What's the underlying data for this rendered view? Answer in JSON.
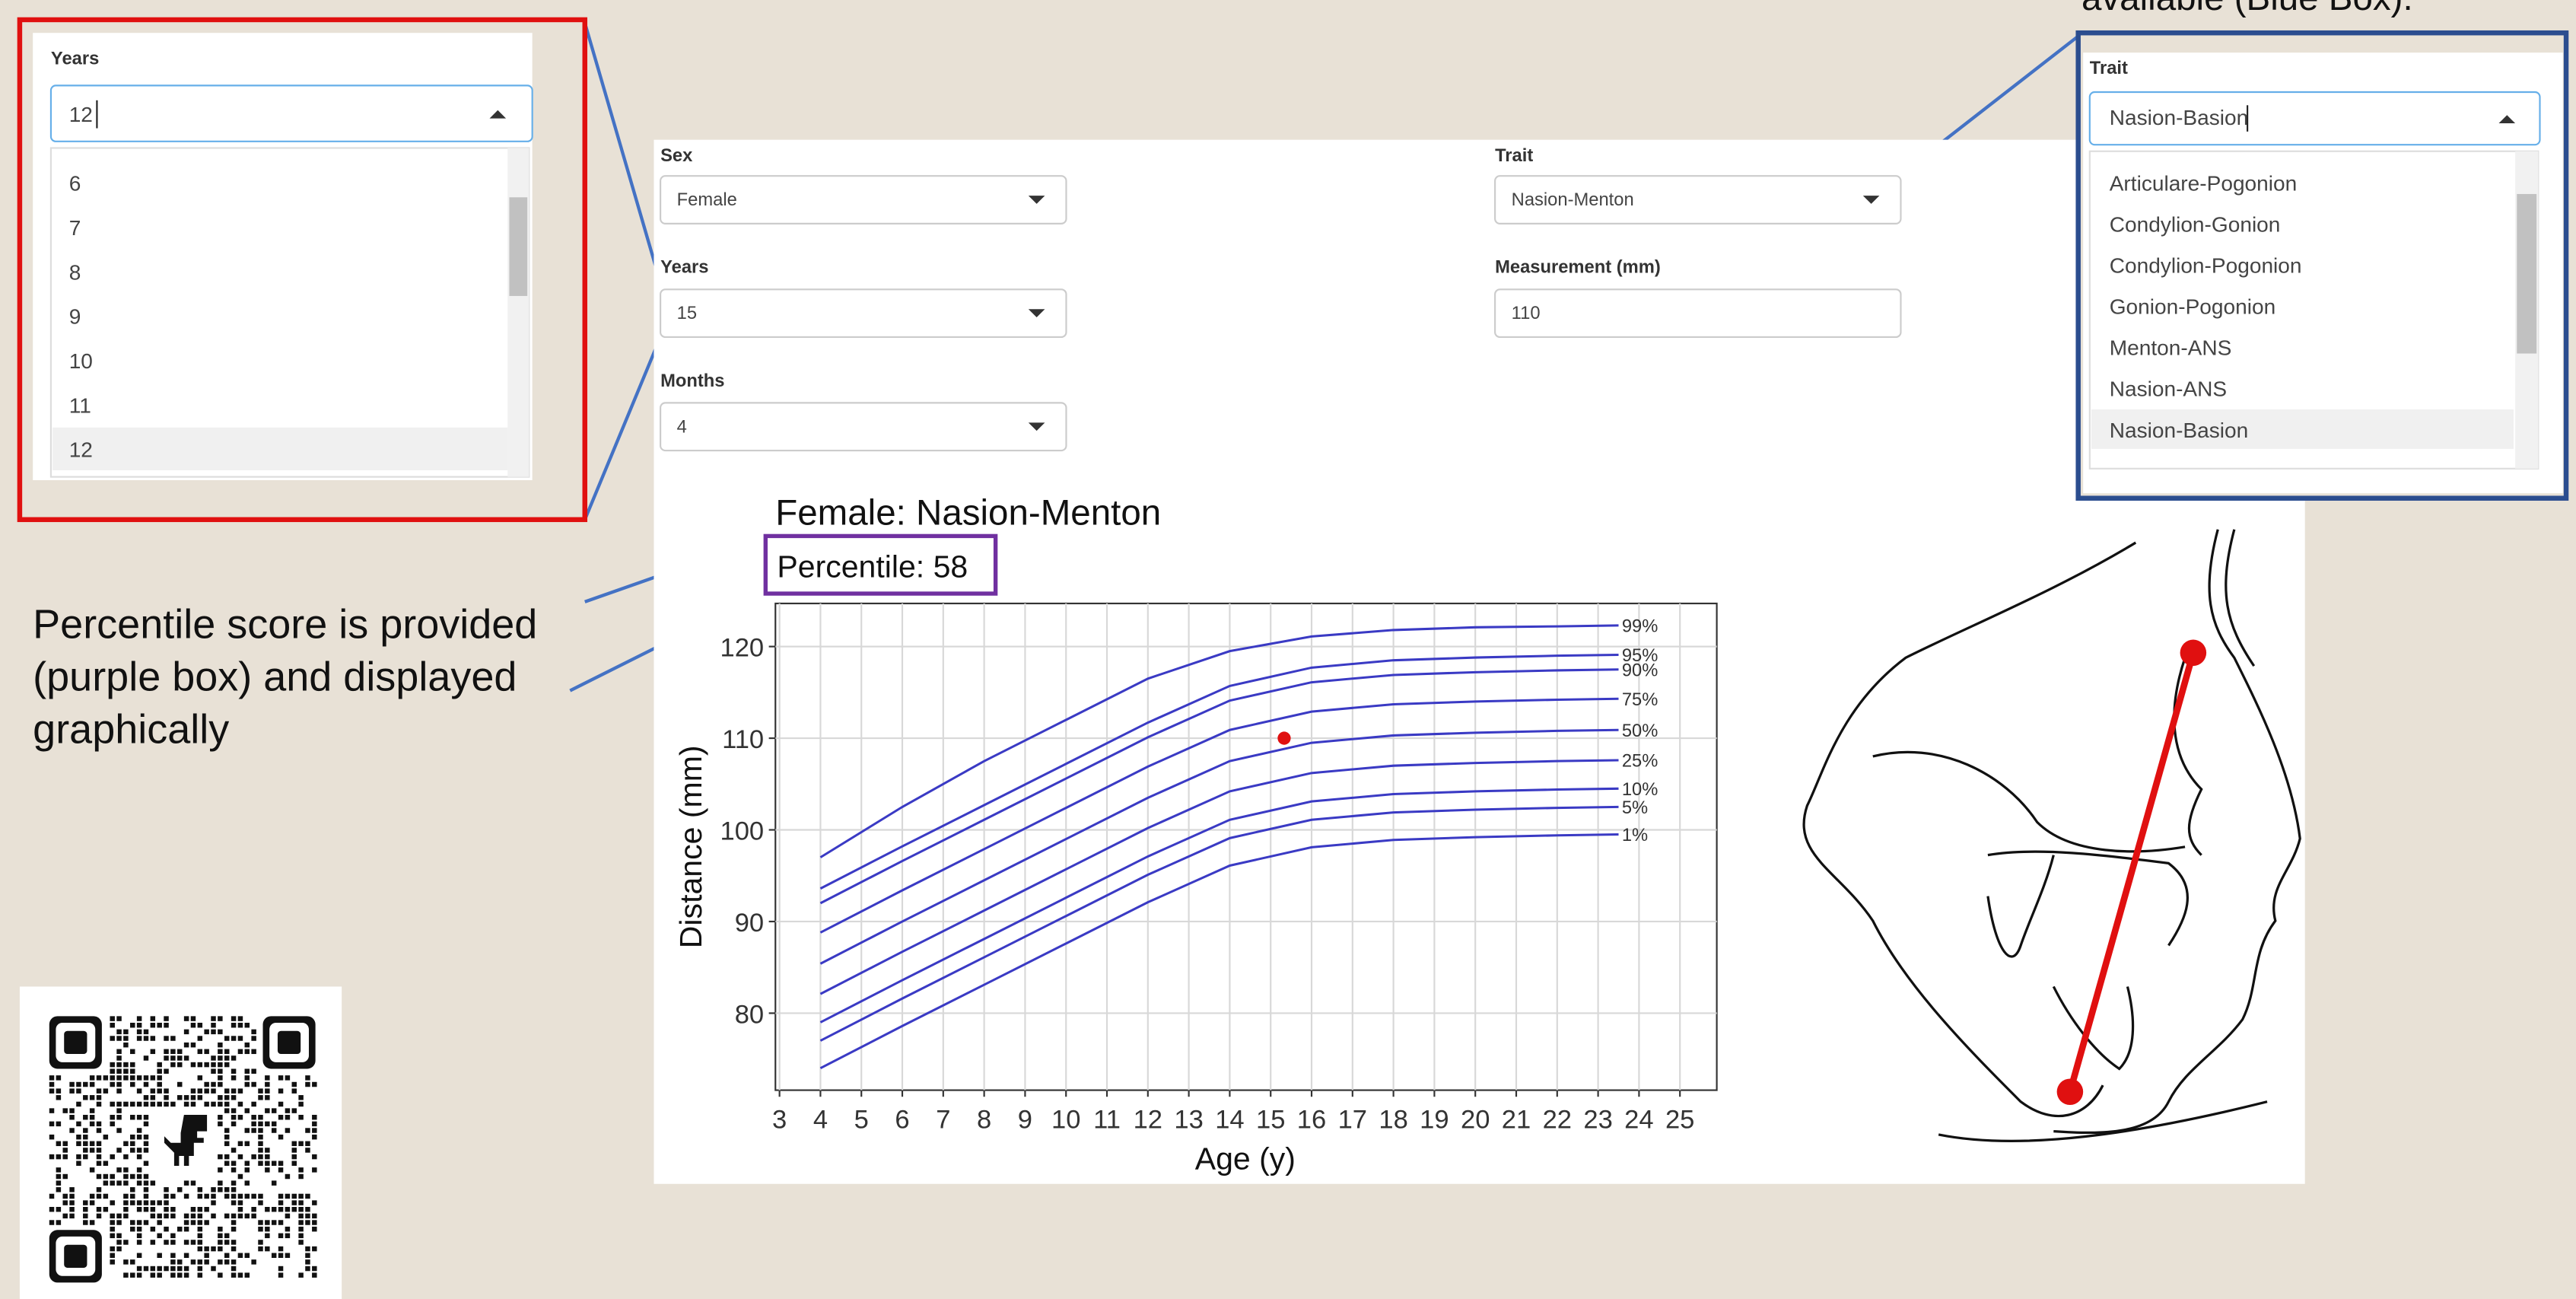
{
  "callout_text": "available (Blue Box).",
  "years_dropdown": {
    "label": "Years",
    "input": "12",
    "options": [
      "6",
      "7",
      "8",
      "9",
      "10",
      "11",
      "12"
    ]
  },
  "form": {
    "sex_label": "Sex",
    "sex": "Female",
    "years_label": "Years",
    "years": "15",
    "months_label": "Months",
    "months": "4",
    "trait_label": "Trait",
    "trait": "Nasion-Menton",
    "measurement_label": "Measurement (mm)",
    "measurement": "110"
  },
  "trait_dropdown": {
    "label": "Trait",
    "input": "Nasion-Basion",
    "options": [
      "Articulare-Pogonion",
      "Condylion-Gonion",
      "Condylion-Pogonion",
      "Gonion-Pogonion",
      "Menton-ANS",
      "Nasion-ANS",
      "Nasion-Basion"
    ]
  },
  "annotation_lines": [
    "Percentile score is provided",
    "(purple box)  and displayed",
    "graphically"
  ],
  "chart": {
    "type": "line",
    "title": "Female: Nasion-Menton",
    "percentile_text": "Percentile: 58",
    "x_label": "Age (y)",
    "y_label": "Distance (mm)",
    "xlim": [
      2.9,
      25.9
    ],
    "ylim": [
      71.6,
      124.7
    ],
    "xticks": [
      3,
      4,
      5,
      6,
      7,
      8,
      9,
      10,
      11,
      12,
      13,
      14,
      15,
      16,
      17,
      18,
      19,
      20,
      21,
      22,
      23,
      24,
      25
    ],
    "yticks": [
      80,
      90,
      100,
      110,
      120
    ],
    "grid": true,
    "x": [
      4,
      6,
      8,
      10,
      12,
      14,
      16,
      18,
      20,
      22,
      23.5
    ],
    "series": [
      {
        "name": "99%",
        "color": "#3a3ac4",
        "values": [
          97.0,
          102.5,
          107.5,
          112.0,
          116.5,
          119.5,
          121.1,
          121.8,
          122.1,
          122.2,
          122.3
        ]
      },
      {
        "name": "95%",
        "color": "#3a3ac4",
        "values": [
          93.6,
          98.2,
          102.7,
          107.2,
          111.7,
          115.7,
          117.7,
          118.5,
          118.8,
          119.0,
          119.1
        ]
      },
      {
        "name": "90%",
        "color": "#3a3ac4",
        "values": [
          92.0,
          96.6,
          101.1,
          105.6,
          110.1,
          114.1,
          116.1,
          116.9,
          117.2,
          117.4,
          117.5
        ]
      },
      {
        "name": "75%",
        "color": "#3a3ac4",
        "values": [
          88.8,
          93.4,
          97.9,
          102.4,
          106.9,
          110.9,
          112.9,
          113.7,
          114.0,
          114.2,
          114.3
        ]
      },
      {
        "name": "50%",
        "color": "#3a3ac4",
        "values": [
          85.4,
          90.0,
          94.5,
          99.0,
          103.5,
          107.5,
          109.5,
          110.3,
          110.6,
          110.8,
          110.9
        ]
      },
      {
        "name": "25%",
        "color": "#3a3ac4",
        "values": [
          82.1,
          86.7,
          91.2,
          95.7,
          100.2,
          104.2,
          106.2,
          107.0,
          107.3,
          107.5,
          107.6
        ]
      },
      {
        "name": "10%",
        "color": "#3a3ac4",
        "values": [
          79.0,
          83.6,
          88.1,
          92.6,
          97.1,
          101.1,
          103.1,
          103.9,
          104.2,
          104.4,
          104.5
        ]
      },
      {
        "name": "5%",
        "color": "#3a3ac4",
        "values": [
          77.0,
          81.6,
          86.1,
          90.6,
          95.1,
          99.1,
          101.1,
          101.9,
          102.2,
          102.4,
          102.5
        ]
      },
      {
        "name": "1%",
        "color": "#3a3ac4",
        "values": [
          74.0,
          78.6,
          83.1,
          87.6,
          92.1,
          96.1,
          98.1,
          98.9,
          99.2,
          99.4,
          99.5
        ]
      }
    ],
    "point": {
      "x": 15.33,
      "y": 110,
      "color": "#e01010"
    }
  }
}
